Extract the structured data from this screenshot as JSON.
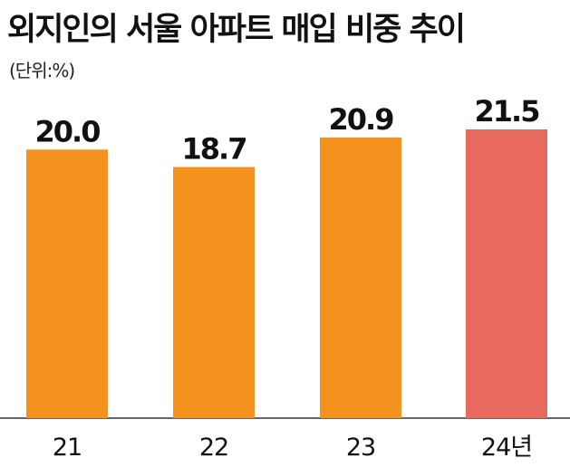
{
  "title": "외지인의 서울 아파트 매입 비중 추이",
  "unit_label": "(단위:%)",
  "colors": {
    "bar": "#F5921E",
    "highlight": "#E86A5E",
    "axis": "#333333",
    "text": "#111111"
  },
  "chart_data": {
    "type": "bar",
    "title": "외지인의 서울 아파트 매입 비중 추이",
    "categories": [
      "21",
      "22",
      "23",
      "24년"
    ],
    "values": [
      20.0,
      18.7,
      20.9,
      21.5
    ],
    "value_labels": [
      "20.0",
      "18.7",
      "20.9",
      "21.5"
    ],
    "highlight_index": 3,
    "ylabel": "(단위:%)",
    "xlabel": "",
    "ylim": [
      0,
      21.5
    ],
    "grid": false,
    "legend": "none"
  }
}
